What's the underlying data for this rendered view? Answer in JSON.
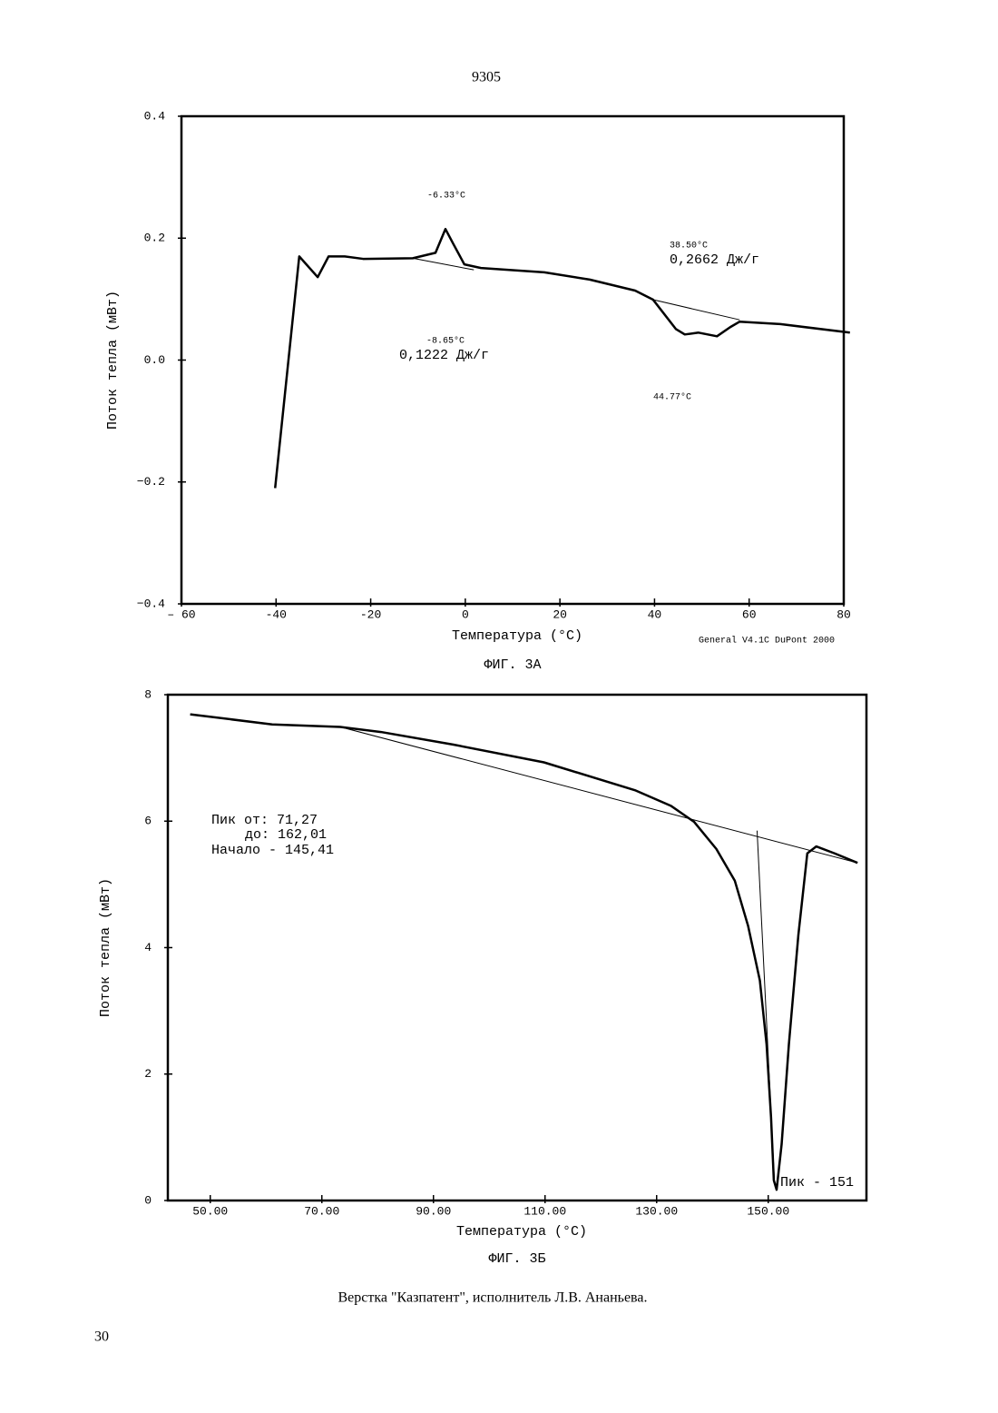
{
  "page_header": "9305",
  "footer": "Верстка \"Казпатент\", исполнитель Л.В. Ананьева.",
  "page_number": "30",
  "chart_data": [
    {
      "type": "line",
      "caption": "ФИГ. 3А",
      "x_label": "Температура (°C)",
      "y_label": "Поток тепла (мВт)",
      "color": "#000000",
      "x": [
        -40.2,
        -35.1,
        -31.2,
        -28.9,
        -25.5,
        -21.6,
        -11.1,
        -6.3,
        -4.2,
        -2.5,
        -0.2,
        3.3,
        16.7,
        26.3,
        35.9,
        39.7,
        44.5,
        46.4,
        49.3,
        53.2,
        56.0,
        58.0,
        66.6,
        81.3
      ],
      "values": [
        -0.21,
        0.17,
        0.136,
        0.17,
        0.17,
        0.166,
        0.167,
        0.176,
        0.215,
        0.19,
        0.157,
        0.151,
        0.144,
        0.132,
        0.114,
        0.099,
        0.051,
        0.042,
        0.045,
        0.039,
        0.054,
        0.063,
        0.059,
        0.045
      ],
      "baselines": [
        {
          "x": [
            -11.1,
            1.8
          ],
          "values": [
            0.167,
            0.148
          ]
        },
        {
          "x": [
            39.7,
            58.0
          ],
          "values": [
            0.099,
            0.066
          ]
        }
      ],
      "annotations": [
        "-6.33°C",
        "-8.65°C",
        "0,1222 Дж/г",
        "38.50°C",
        "0,2662 Дж/г",
        "44.77°C",
        "General V4.1C DuPont 2000"
      ],
      "xlim": [
        -60,
        80
      ],
      "ylim": [
        -0.4,
        0.4
      ],
      "xticks": [
        {
          "value": -60,
          "label": "– 60"
        },
        -40,
        -20,
        0,
        20,
        40,
        60,
        80
      ],
      "yticks": [
        {
          "value": -0.4,
          "label": "−0.4"
        },
        {
          "value": -0.2,
          "label": "−0.2"
        },
        {
          "value": 0,
          "label": "0.0"
        },
        0.2,
        0.4
      ]
    },
    {
      "type": "line",
      "caption": "ФИГ. 3Б",
      "x_label": "Температура (°C)",
      "y_label": "Поток тепла (мВт)",
      "color": "#000000",
      "x": [
        46.4,
        61.1,
        73.3,
        80.6,
        93.6,
        109.8,
        126.1,
        132.6,
        136.7,
        140.7,
        144.0,
        146.4,
        148.5,
        149.7,
        150.5,
        151.0,
        151.5,
        152.4,
        153.7,
        155.4,
        157.0,
        158.6,
        161.9,
        166.0
      ],
      "values": [
        7.69,
        7.53,
        7.49,
        7.41,
        7.21,
        6.93,
        6.49,
        6.24,
        5.99,
        5.56,
        5.06,
        4.34,
        3.48,
        2.47,
        1.32,
        0.32,
        0.17,
        0.89,
        2.47,
        4.2,
        5.49,
        5.6,
        5.49,
        5.34
      ],
      "baselines": [
        {
          "x": [
            73.3,
            166.0
          ],
          "values": [
            7.49,
            5.34
          ]
        },
        {
          "x": [
            148.0,
            151.1
          ],
          "values": [
            5.85,
            0.32
          ]
        }
      ],
      "annotations": [
        "Пик от: 71,27",
        "до: 162,01",
        "Начало - 145,41",
        "Пик - 151"
      ],
      "xlim": [
        42.4,
        167.6
      ],
      "ylim": [
        0,
        8
      ],
      "xticks": [
        {
          "value": 50,
          "label": "50.00"
        },
        {
          "value": 70,
          "label": "70.00"
        },
        {
          "value": 90,
          "label": "90.00"
        },
        {
          "value": 110,
          "label": "110.00"
        },
        {
          "value": 130,
          "label": "130.00"
        },
        {
          "value": 150,
          "label": "150.00"
        }
      ],
      "yticks": [
        0,
        2,
        4,
        6,
        8
      ]
    }
  ]
}
